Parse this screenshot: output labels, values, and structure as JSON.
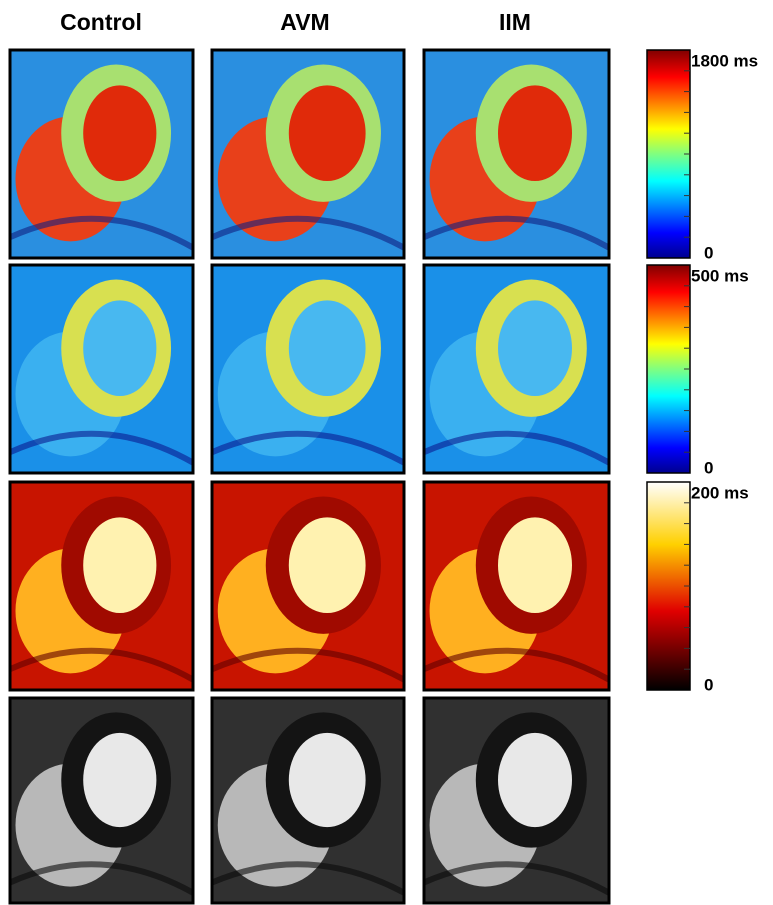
{
  "columns": [
    "Control",
    "AVM",
    "IIM"
  ],
  "colorbars": [
    {
      "max_label": "1800 ms",
      "min_label": "0"
    },
    {
      "max_label": "500 ms",
      "min_label": "0"
    },
    {
      "max_label": "200 ms",
      "min_label": "0"
    }
  ]
}
